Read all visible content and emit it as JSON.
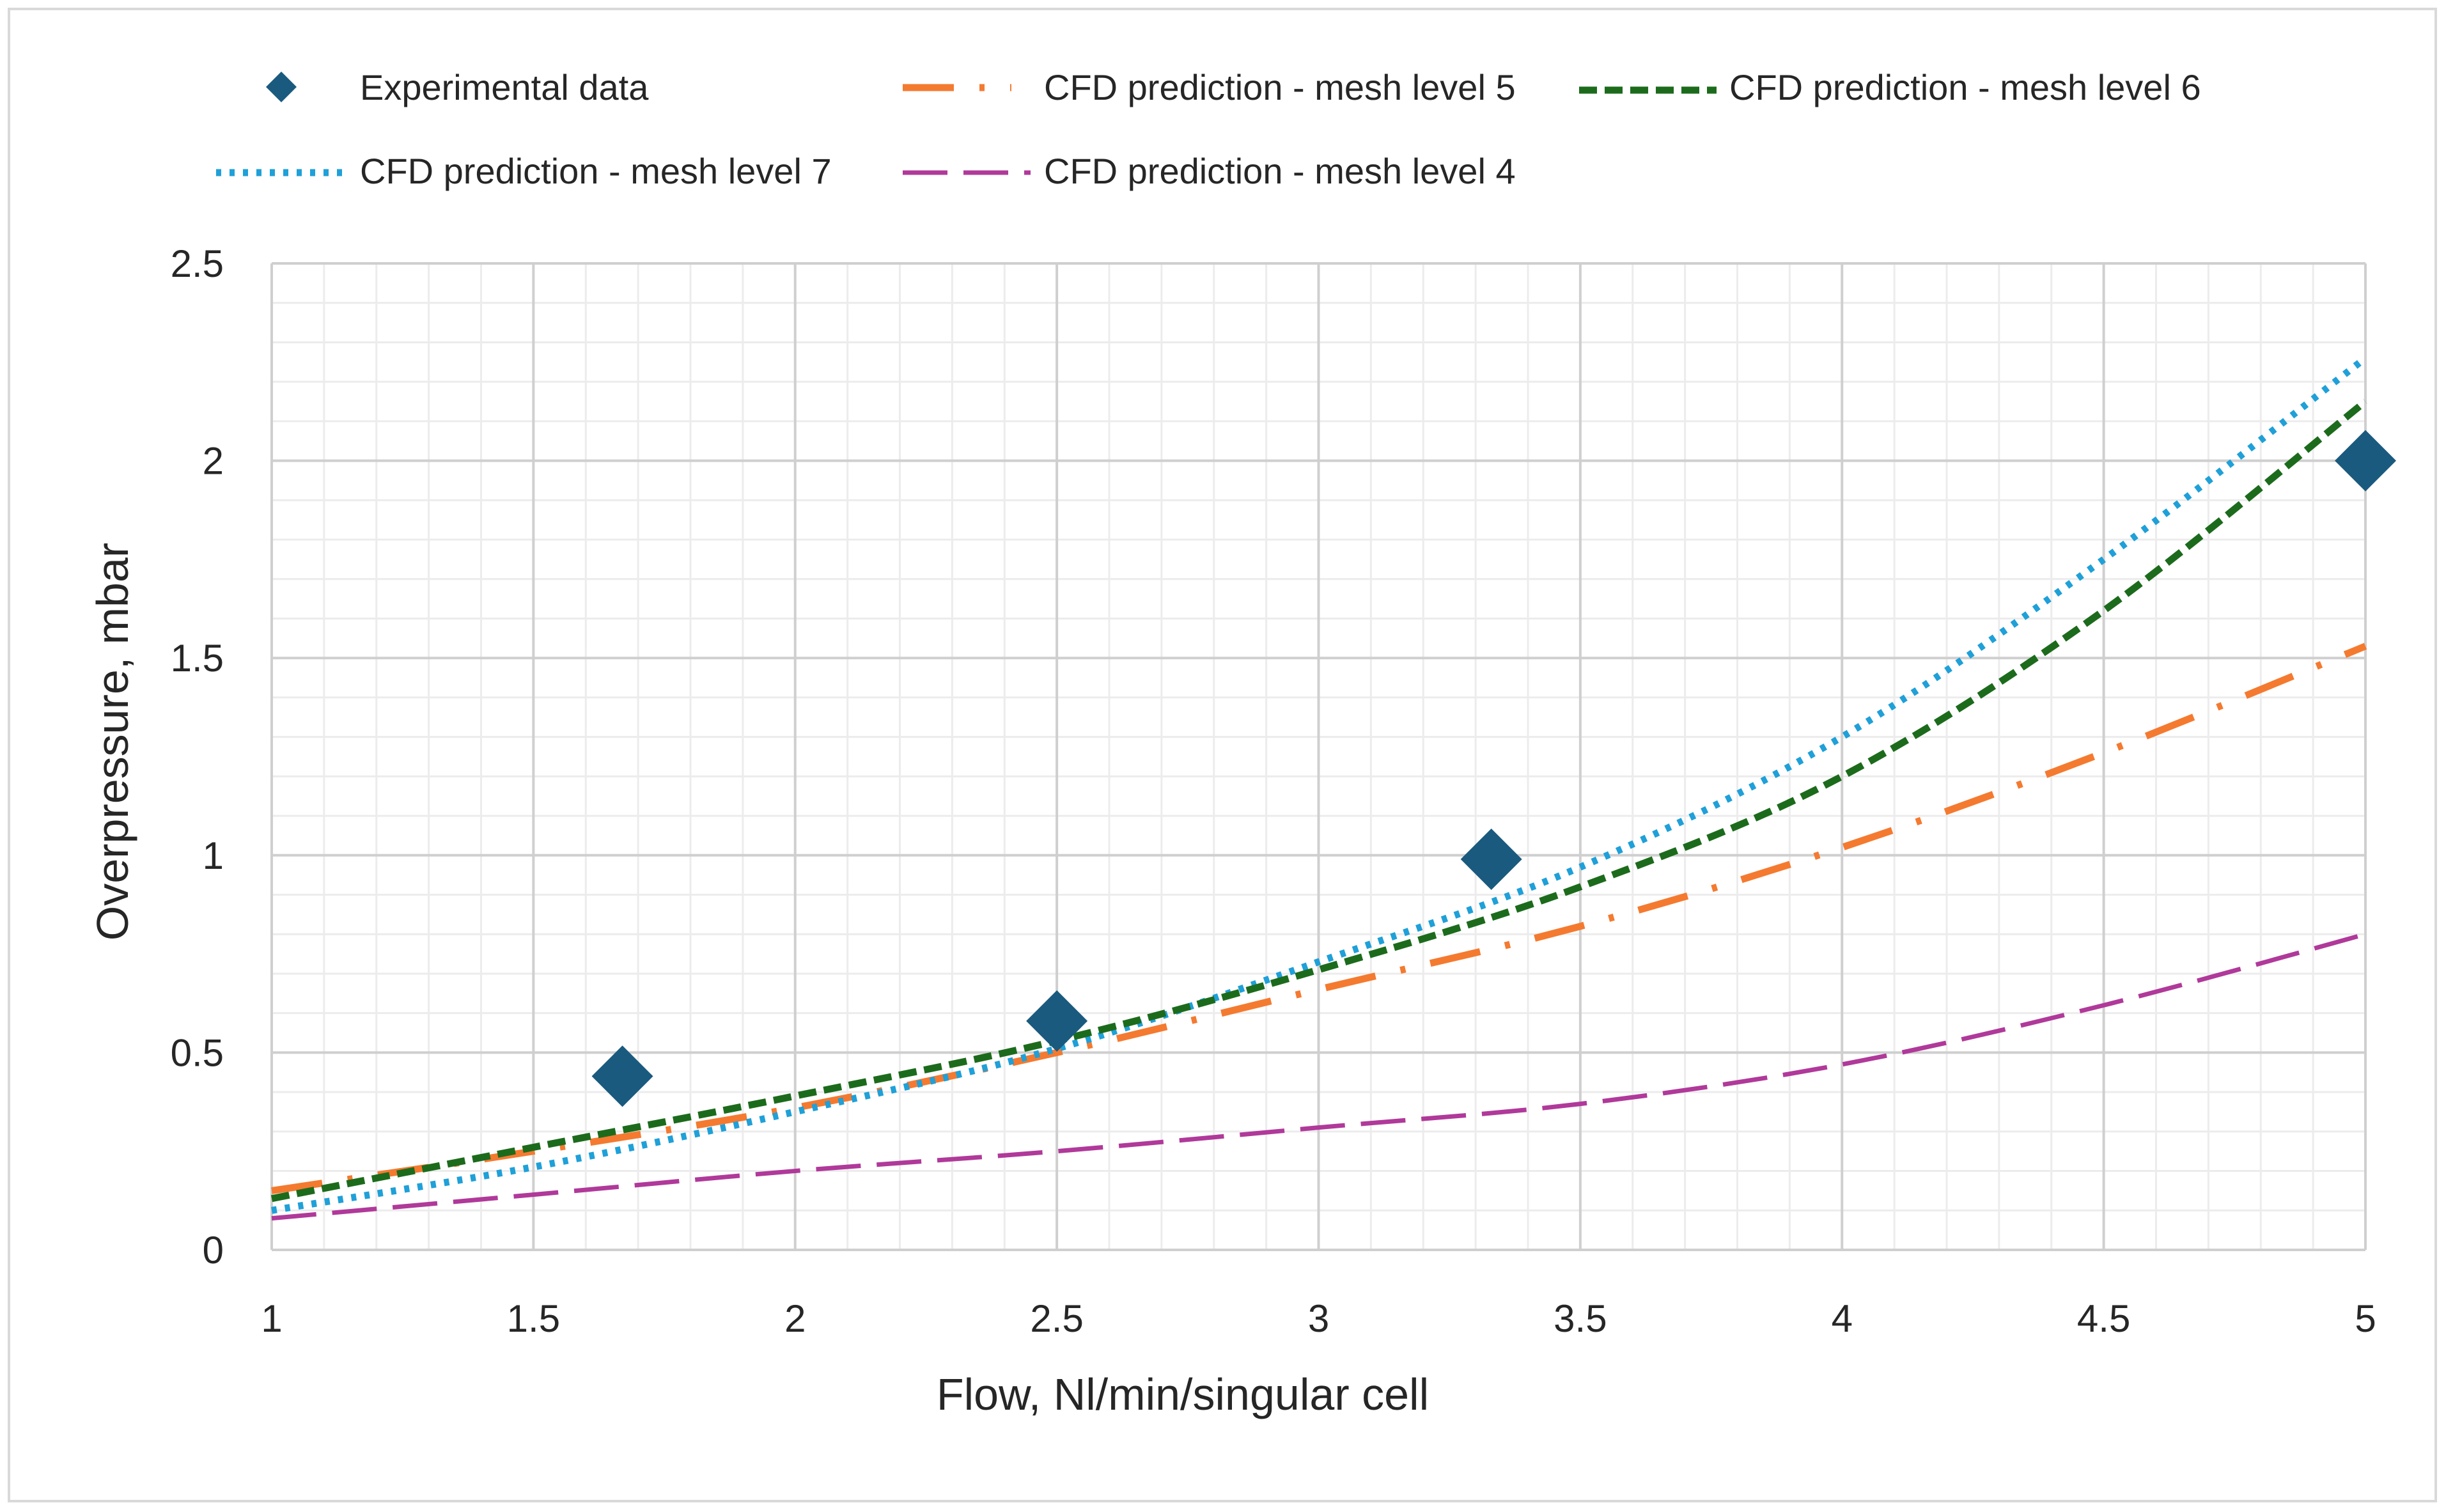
{
  "chart_data": {
    "type": "line",
    "title": "",
    "xlabel": "Flow, Nl/min/singular cell",
    "ylabel": "Overpressure, mbar",
    "xlim": [
      1,
      5
    ],
    "ylim": [
      0,
      2.5
    ],
    "grid": true,
    "legend_position": "top",
    "x_ticks": [
      1,
      1.5,
      2,
      2.5,
      3,
      3.5,
      4,
      4.5,
      5
    ],
    "x_tick_labels": [
      "1",
      "1.5",
      "2",
      "2.5",
      "3",
      "3.5",
      "4",
      "4.5",
      "5"
    ],
    "y_ticks": [
      0,
      0.5,
      1,
      1.5,
      2,
      2.5
    ],
    "y_tick_labels": [
      "0",
      "0.5",
      "1",
      "1.5",
      "2",
      "2.5"
    ],
    "series": [
      {
        "name": "Experimental data",
        "style": "markers",
        "marker": "diamond",
        "color": "#1a5a7e",
        "x": [
          1.67,
          2.5,
          3.33,
          5.0
        ],
        "y": [
          0.44,
          0.58,
          0.99,
          2.0
        ]
      },
      {
        "name": "CFD prediction - mesh level 5",
        "style": "long-dash-dot",
        "color": "#f47a30",
        "x": [
          1.0,
          1.5,
          2.0,
          2.5,
          3.0,
          3.5,
          4.0,
          4.5,
          5.0
        ],
        "y": [
          0.15,
          0.25,
          0.36,
          0.5,
          0.66,
          0.82,
          1.02,
          1.26,
          1.53
        ]
      },
      {
        "name": "CFD prediction - mesh level 6",
        "style": "dashed",
        "color": "#1c6b1c",
        "x": [
          1.0,
          1.5,
          2.0,
          2.5,
          3.0,
          3.5,
          4.0,
          4.5,
          5.0
        ],
        "y": [
          0.13,
          0.26,
          0.39,
          0.53,
          0.71,
          0.92,
          1.2,
          1.62,
          2.15
        ]
      },
      {
        "name": "CFD prediction - mesh level 7",
        "style": "dotted",
        "color": "#1fa0d8",
        "x": [
          1.0,
          1.5,
          2.0,
          2.5,
          3.0,
          3.5,
          4.0,
          4.5,
          5.0
        ],
        "y": [
          0.1,
          0.21,
          0.35,
          0.51,
          0.73,
          0.97,
          1.3,
          1.75,
          2.26
        ]
      },
      {
        "name": "CFD prediction - mesh level 4",
        "style": "long-dash",
        "color": "#b0399a",
        "x": [
          1.0,
          1.5,
          2.0,
          2.5,
          3.0,
          3.5,
          4.0,
          4.5,
          5.0
        ],
        "y": [
          0.08,
          0.14,
          0.2,
          0.25,
          0.31,
          0.37,
          0.47,
          0.62,
          0.8
        ]
      }
    ]
  }
}
